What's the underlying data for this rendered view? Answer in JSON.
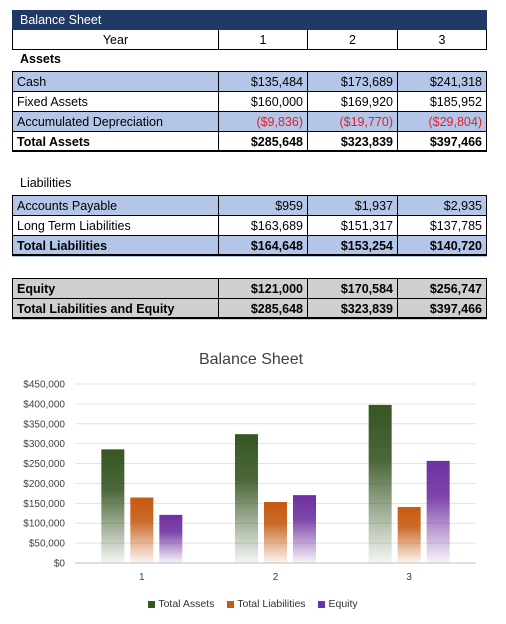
{
  "sheet": {
    "title": "Balance Sheet",
    "year_label": "Year",
    "years": [
      "1",
      "2",
      "3"
    ],
    "assets_header": "Assets",
    "assets_rows": [
      {
        "label": "Cash",
        "values": [
          "$135,484",
          "$173,689",
          "$241,318"
        ]
      },
      {
        "label": "Fixed Assets",
        "values": [
          "$160,000",
          "$169,920",
          "$185,952"
        ]
      },
      {
        "label": "Accumulated Depreciation",
        "values": [
          "($9,836)",
          "($19,770)",
          "($29,804)"
        ]
      }
    ],
    "total_assets": {
      "label": "Total Assets",
      "values": [
        "$285,648",
        "$323,839",
        "$397,466"
      ]
    },
    "liabilities_header": "Liabilities",
    "liabilities_rows": [
      {
        "label": "Accounts Payable",
        "values": [
          "$959",
          "$1,937",
          "$2,935"
        ]
      },
      {
        "label": "Long Term Liabilities",
        "values": [
          "$163,689",
          "$151,317",
          "$137,785"
        ]
      }
    ],
    "total_liabilities": {
      "label": "Total Liabilities",
      "values": [
        "$164,648",
        "$153,254",
        "$140,720"
      ]
    },
    "equity": {
      "label": "Equity",
      "values": [
        "$121,000",
        "$170,584",
        "$256,747"
      ]
    },
    "total_liab_equity": {
      "label": "Total Liabilities and Equity",
      "values": [
        "$285,648",
        "$323,839",
        "$397,466"
      ]
    }
  },
  "colors": {
    "header_bg": "#1f3864",
    "row_blue": "#b4c6e7",
    "row_gray": "#d0cece",
    "negative": "#e0202a",
    "total_assets": "#375623",
    "total_liabilities": "#c55a11",
    "equity": "#7030a0"
  },
  "chart_data": {
    "type": "bar",
    "title": "Balance Sheet",
    "categories": [
      "1",
      "2",
      "3"
    ],
    "series": [
      {
        "name": "Total Assets",
        "values": [
          285648,
          323839,
          397466
        ]
      },
      {
        "name": "Total Liabilities",
        "values": [
          164648,
          153254,
          140720
        ]
      },
      {
        "name": "Equity",
        "values": [
          121000,
          170584,
          256747
        ]
      }
    ],
    "ylim": [
      0,
      450000
    ],
    "yticks": [
      "$0",
      "$50,000",
      "$100,000",
      "$150,000",
      "$200,000",
      "$250,000",
      "$300,000",
      "$350,000",
      "$400,000",
      "$450,000"
    ],
    "grid": true,
    "legend": "bottom"
  }
}
